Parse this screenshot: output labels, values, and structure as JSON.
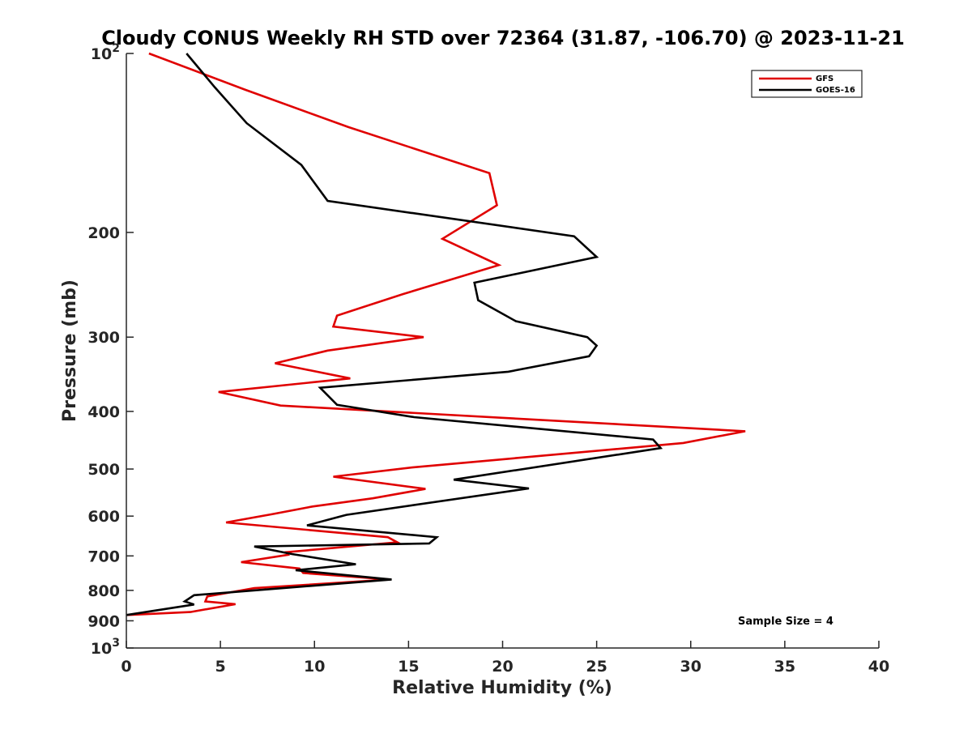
{
  "chart_data": {
    "type": "line",
    "title": "Cloudy CONUS Weekly RH STD over 72364 (31.87, -106.70) @ 2023-11-21",
    "xlabel": "Relative Humidity (%)",
    "ylabel": "Pressure (mb)",
    "xlim": [
      0,
      40
    ],
    "ylim": [
      100,
      1000
    ],
    "y_scale": "log",
    "y_reversed": true,
    "grid": false,
    "legend_position": "top-right",
    "annotation": "Sample Size = 4",
    "x_ticks": [
      "0",
      "5",
      "10",
      "15",
      "20",
      "25",
      "30",
      "35",
      "40"
    ],
    "y_ticks": [
      {
        "value": 100,
        "base": "10",
        "exp": "2"
      },
      {
        "value": 200,
        "label": "200"
      },
      {
        "value": 300,
        "label": "300"
      },
      {
        "value": 400,
        "label": "400"
      },
      {
        "value": 500,
        "label": "500"
      },
      {
        "value": 600,
        "label": "600"
      },
      {
        "value": 700,
        "label": "700"
      },
      {
        "value": 800,
        "label": "800"
      },
      {
        "value": 900,
        "label": "900"
      },
      {
        "value": 1000,
        "base": "10",
        "exp": "3"
      }
    ],
    "series": [
      {
        "name": "GFS",
        "color": "#e00000",
        "points": [
          [
            1.2,
            100
          ],
          [
            6.3,
            115
          ],
          [
            11.8,
            133
          ],
          [
            19.3,
            159
          ],
          [
            19.7,
            180
          ],
          [
            16.8,
            205
          ],
          [
            19.8,
            227
          ],
          [
            14.7,
            254
          ],
          [
            11.2,
            276
          ],
          [
            11.0,
            288
          ],
          [
            15.8,
            300
          ],
          [
            10.7,
            316
          ],
          [
            7.9,
            332
          ],
          [
            11.9,
            352
          ],
          [
            4.9,
            371
          ],
          [
            8.2,
            391
          ],
          [
            32.9,
            432
          ],
          [
            29.6,
            452
          ],
          [
            15.2,
            497
          ],
          [
            11.0,
            515
          ],
          [
            15.9,
            540
          ],
          [
            13.1,
            560
          ],
          [
            9.9,
            578
          ],
          [
            7.7,
            596
          ],
          [
            5.3,
            615
          ],
          [
            13.9,
            651
          ],
          [
            14.4,
            664
          ],
          [
            8.5,
            690
          ],
          [
            8.6,
            697
          ],
          [
            6.1,
            717
          ],
          [
            9.2,
            735
          ],
          [
            9.4,
            748
          ],
          [
            14.0,
            767
          ],
          [
            6.8,
            793
          ],
          [
            4.3,
            819
          ],
          [
            4.2,
            835
          ],
          [
            5.8,
            844
          ],
          [
            3.4,
            870
          ],
          [
            0,
            880
          ]
        ]
      },
      {
        "name": "GOES-16",
        "color": "#000000",
        "points": [
          [
            3.2,
            100
          ],
          [
            4.7,
            114
          ],
          [
            6.4,
            131
          ],
          [
            9.3,
            154
          ],
          [
            10.7,
            177
          ],
          [
            23.8,
            203
          ],
          [
            25.0,
            220
          ],
          [
            18.5,
            243
          ],
          [
            18.7,
            260
          ],
          [
            20.7,
            282
          ],
          [
            24.5,
            300
          ],
          [
            25.0,
            310
          ],
          [
            24.6,
            323
          ],
          [
            20.3,
            343
          ],
          [
            10.3,
            365
          ],
          [
            11.2,
            390
          ],
          [
            15.3,
            409
          ],
          [
            28.0,
            446
          ],
          [
            28.4,
            461
          ],
          [
            17.4,
            521
          ],
          [
            21.4,
            539
          ],
          [
            11.7,
            597
          ],
          [
            9.6,
            622
          ],
          [
            16.5,
            651
          ],
          [
            16.1,
            667
          ],
          [
            6.8,
            675
          ],
          [
            8.8,
            695
          ],
          [
            12.2,
            723
          ],
          [
            9.0,
            740
          ],
          [
            14.1,
            767
          ],
          [
            3.6,
            815
          ],
          [
            3.1,
            835
          ],
          [
            3.6,
            845
          ],
          [
            0,
            880
          ]
        ]
      }
    ]
  }
}
